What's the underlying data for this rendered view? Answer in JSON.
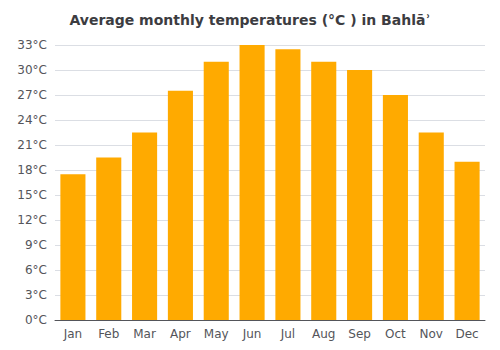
{
  "chart_data": {
    "type": "bar",
    "title": "Average monthly temperatures (°C ) in Bahlāʾ",
    "categories": [
      "Jan",
      "Feb",
      "Mar",
      "Apr",
      "May",
      "Jun",
      "Jul",
      "Aug",
      "Sep",
      "Oct",
      "Nov",
      "Dec"
    ],
    "values": [
      17.5,
      19.5,
      22.5,
      27.5,
      31.0,
      33.0,
      32.5,
      31.0,
      30.0,
      27.0,
      22.5,
      19.0
    ],
    "color": "#FFAA00",
    "ylim": [
      0,
      33
    ],
    "yticks": [
      {
        "value": 0,
        "label": "0°C"
      },
      {
        "value": 3,
        "label": "3°C"
      },
      {
        "value": 6,
        "label": "6°C"
      },
      {
        "value": 9,
        "label": "9°C"
      },
      {
        "value": 12,
        "label": "12°C"
      },
      {
        "value": 15,
        "label": "15°C"
      },
      {
        "value": 18,
        "label": "18°C"
      },
      {
        "value": 21,
        "label": "21°C"
      },
      {
        "value": 24,
        "label": "24°C"
      },
      {
        "value": 27,
        "label": "27°C"
      },
      {
        "value": 30,
        "label": "30°C"
      },
      {
        "value": 33,
        "label": "33°C"
      }
    ],
    "grid": true
  }
}
